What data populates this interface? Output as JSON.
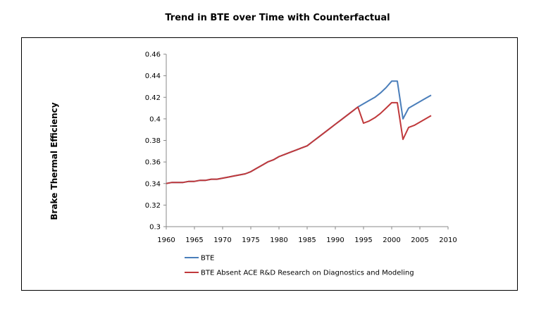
{
  "chart_data": {
    "type": "line",
    "title": "Trend in BTE over Time with Counterfactual",
    "xlabel": "",
    "ylabel": "Brake Thermal Efficiency",
    "xlim": [
      1960,
      2010
    ],
    "ylim": [
      0.3,
      0.46
    ],
    "xticks": [
      1960,
      1965,
      1970,
      1975,
      1980,
      1985,
      1990,
      1995,
      2000,
      2005,
      2010
    ],
    "yticks": [
      "0.3",
      "0.32",
      "0.34",
      "0.36",
      "0.38",
      "0.4",
      "0.42",
      "0.44",
      "0.46"
    ],
    "grid": false,
    "legend_position": "bottom",
    "series": [
      {
        "name": "BTE",
        "color": "#4a7eba",
        "x": [
          1960,
          1961,
          1962,
          1963,
          1964,
          1965,
          1966,
          1967,
          1968,
          1969,
          1970,
          1971,
          1972,
          1973,
          1974,
          1975,
          1976,
          1977,
          1978,
          1979,
          1980,
          1981,
          1982,
          1983,
          1984,
          1985,
          1986,
          1987,
          1988,
          1989,
          1990,
          1991,
          1992,
          1993,
          1994,
          1995,
          1996,
          1997,
          1998,
          1999,
          2000,
          2001,
          2002,
          2003,
          2004,
          2005,
          2006,
          2007
        ],
        "values": [
          0.34,
          0.341,
          0.341,
          0.341,
          0.342,
          0.342,
          0.343,
          0.343,
          0.344,
          0.344,
          0.345,
          0.346,
          0.347,
          0.348,
          0.349,
          0.351,
          0.354,
          0.357,
          0.36,
          0.362,
          0.365,
          0.367,
          0.369,
          0.371,
          0.373,
          0.375,
          0.379,
          0.383,
          0.387,
          0.391,
          0.395,
          0.399,
          0.403,
          0.407,
          0.411,
          0.414,
          0.417,
          0.42,
          0.424,
          0.429,
          0.435,
          0.435,
          0.4,
          0.41,
          0.413,
          0.416,
          0.419,
          0.422
        ]
      },
      {
        "name": "BTE Absent ACE R&D Research on Diagnostics and Modeling",
        "color": "#c0393b",
        "x": [
          1960,
          1961,
          1962,
          1963,
          1964,
          1965,
          1966,
          1967,
          1968,
          1969,
          1970,
          1971,
          1972,
          1973,
          1974,
          1975,
          1976,
          1977,
          1978,
          1979,
          1980,
          1981,
          1982,
          1983,
          1984,
          1985,
          1986,
          1987,
          1988,
          1989,
          1990,
          1991,
          1992,
          1993,
          1994,
          1995,
          1996,
          1997,
          1998,
          1999,
          2000,
          2001,
          2002,
          2003,
          2004,
          2005,
          2006,
          2007
        ],
        "values": [
          0.34,
          0.341,
          0.341,
          0.341,
          0.342,
          0.342,
          0.343,
          0.343,
          0.344,
          0.344,
          0.345,
          0.346,
          0.347,
          0.348,
          0.349,
          0.351,
          0.354,
          0.357,
          0.36,
          0.362,
          0.365,
          0.367,
          0.369,
          0.371,
          0.373,
          0.375,
          0.379,
          0.383,
          0.387,
          0.391,
          0.395,
          0.399,
          0.403,
          0.407,
          0.411,
          0.396,
          0.398,
          0.401,
          0.405,
          0.41,
          0.415,
          0.415,
          0.381,
          0.392,
          0.394,
          0.397,
          0.4,
          0.403
        ]
      }
    ]
  }
}
